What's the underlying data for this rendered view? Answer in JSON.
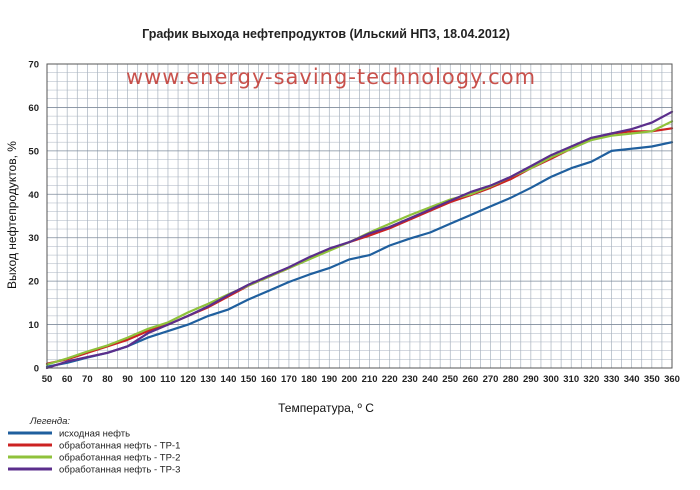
{
  "chart_data": {
    "type": "line",
    "title": "График выхода нефтепродуктов (Ильский НПЗ, 18.04.2012)",
    "watermark": "www.energy-saving-technology.com",
    "xlabel": "Температура, º С",
    "ylabel": "Выход нефтепродуктов,  %",
    "xlim": [
      50,
      360
    ],
    "ylim": [
      0,
      70
    ],
    "x": [
      50,
      60,
      70,
      80,
      90,
      100,
      110,
      120,
      130,
      140,
      150,
      160,
      170,
      180,
      190,
      200,
      210,
      220,
      230,
      240,
      250,
      260,
      270,
      280,
      290,
      300,
      310,
      320,
      330,
      340,
      350,
      360
    ],
    "xticks": [
      "50",
      "60",
      "70",
      "80",
      "90",
      "100",
      "110",
      "120",
      "130",
      "140",
      "150",
      "160",
      "170",
      "180",
      "190",
      "200",
      "210",
      "220",
      "230",
      "240",
      "250",
      "260",
      "270",
      "280",
      "290",
      "300",
      "310",
      "320",
      "330",
      "340",
      "350",
      "360"
    ],
    "yticks": [
      "0",
      "10",
      "20",
      "30",
      "40",
      "50",
      "60",
      "70"
    ],
    "grid": true,
    "legend_title": "Легенда:",
    "legend_position": "bottom-left",
    "series": [
      {
        "name": "исходная нефть",
        "color": "#1f5f9e",
        "values": [
          0.3,
          1.2,
          2.4,
          3.5,
          5.0,
          7.0,
          8.5,
          10.0,
          12.0,
          13.5,
          15.8,
          17.8,
          19.8,
          21.5,
          23.0,
          25.0,
          26.0,
          28.2,
          29.8,
          31.2,
          33.2,
          35.2,
          37.2,
          39.2,
          41.5,
          44.0,
          46.0,
          47.5,
          50.0,
          50.5,
          51.0,
          52.0
        ]
      },
      {
        "name": "обработанная нефть - ТР-1",
        "color": "#cc2222",
        "values": [
          1.0,
          2.0,
          3.5,
          5.0,
          6.5,
          8.5,
          10.0,
          12.0,
          14.0,
          16.5,
          19.0,
          21.0,
          23.0,
          25.2,
          27.2,
          29.0,
          30.5,
          32.2,
          34.2,
          36.2,
          38.2,
          39.8,
          41.5,
          43.5,
          46.0,
          48.2,
          50.5,
          52.8,
          54.0,
          54.5,
          54.5,
          55.2
        ]
      },
      {
        "name": "обработанная нефть - ТР-2",
        "color": "#8fc23b",
        "values": [
          0.8,
          2.2,
          3.8,
          5.2,
          7.0,
          9.0,
          10.5,
          12.8,
          14.8,
          17.0,
          19.0,
          21.0,
          23.0,
          25.0,
          27.0,
          29.0,
          31.2,
          33.2,
          35.2,
          37.0,
          38.8,
          40.0,
          41.8,
          44.0,
          46.0,
          48.5,
          50.5,
          52.5,
          53.5,
          54.0,
          54.5,
          56.8
        ]
      },
      {
        "name": "обработанная нефть - ТР-3",
        "color": "#5b2e8c",
        "values": [
          0.0,
          1.5,
          2.5,
          3.5,
          5.0,
          8.0,
          10.0,
          12.0,
          14.2,
          16.8,
          19.2,
          21.2,
          23.2,
          25.5,
          27.5,
          29.0,
          31.0,
          32.5,
          34.5,
          36.5,
          38.5,
          40.5,
          42.0,
          44.0,
          46.5,
          49.0,
          51.0,
          53.0,
          54.0,
          55.0,
          56.5,
          59.0
        ]
      }
    ]
  }
}
